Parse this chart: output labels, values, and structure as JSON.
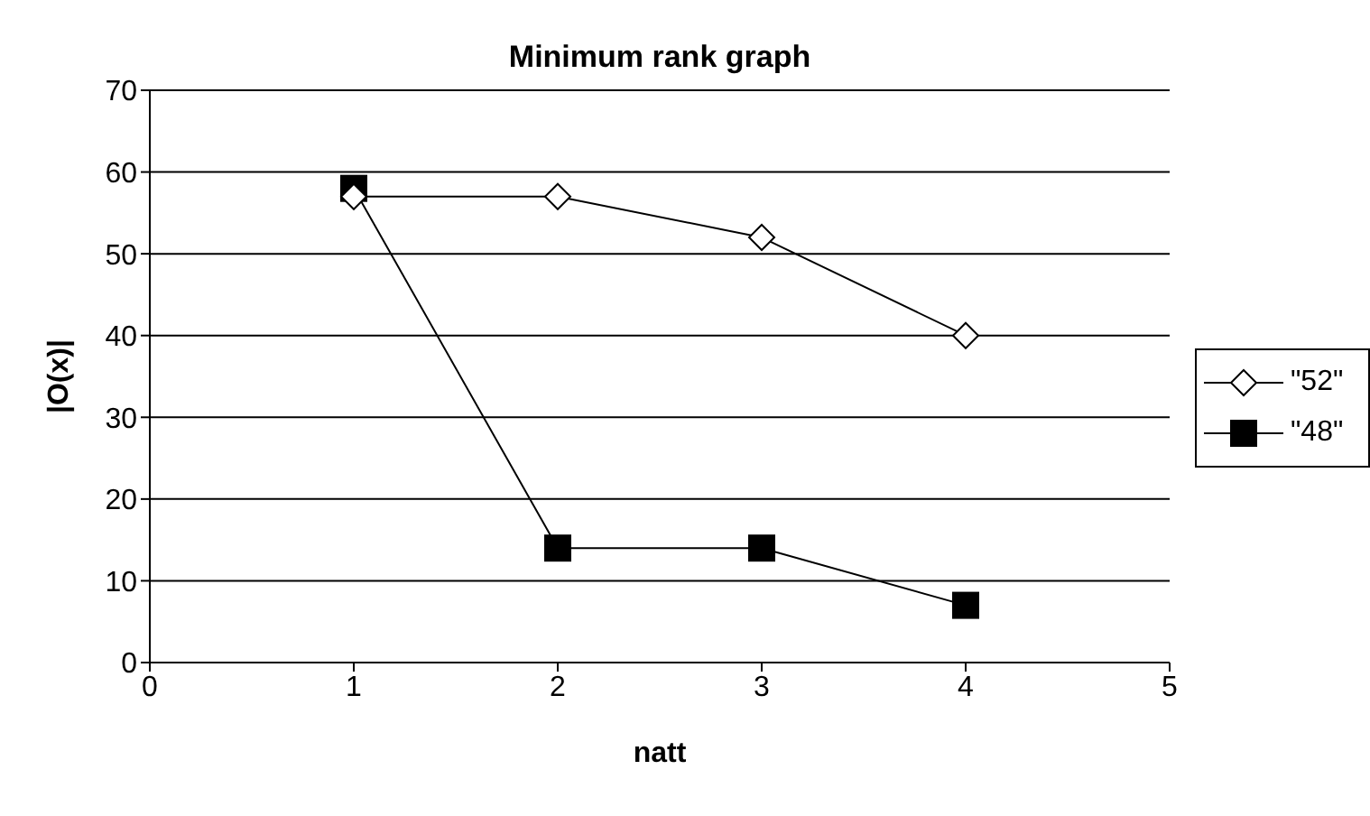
{
  "chart_data": {
    "type": "line",
    "title": "Minimum rank graph",
    "xlabel": "natt",
    "ylabel": "|O(x)|",
    "x": [
      1,
      2,
      3,
      4
    ],
    "xlim": [
      0,
      5
    ],
    "xticks": [
      0,
      1,
      2,
      3,
      4,
      5
    ],
    "ylim": [
      0,
      70
    ],
    "yticks": [
      0,
      10,
      20,
      30,
      40,
      50,
      60,
      70
    ],
    "grid": "y",
    "legend": "right",
    "line_style": "solid",
    "series": [
      {
        "name": "\"52\"",
        "color": "#000000",
        "marker": "diamond",
        "values": [
          57,
          57,
          52,
          40
        ]
      },
      {
        "name": "\"48\"",
        "color": "#000000",
        "marker": "square",
        "values": [
          58,
          14,
          14,
          7
        ]
      }
    ]
  }
}
